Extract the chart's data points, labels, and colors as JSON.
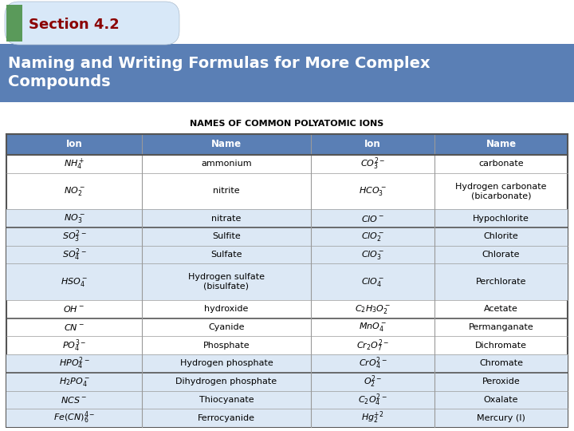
{
  "title": "Section 4.2",
  "subtitle": "Naming and Writing Formulas for More Complex\nCompounds",
  "table_title": "NAMES OF COMMON POLYATOMIC IONS",
  "header_bg": "#5a7fb5",
  "header_text_color": "#ffffff",
  "green_box_color": "#5a9a5a",
  "red_text_color": "#8B0000",
  "tab_bg": "#dce8f5",
  "table_header_bg": "#5a7fb5",
  "table_header_text": "#ffffff",
  "alt_row_bg": "#dce8f5",
  "white_row_bg": "#ffffff",
  "thick_border_rows": [
    2,
    6,
    9
  ],
  "columns": [
    "Ion",
    "Name",
    "Ion",
    "Name"
  ],
  "rows": [
    [
      "$NH_4^+$",
      "ammonium",
      "$CO_3^{2-}$",
      "carbonate"
    ],
    [
      "$NO_2^-$",
      "nitrite",
      "$HCO_3^-$",
      "Hydrogen carbonate\n(bicarbonate)"
    ],
    [
      "$NO_3^-$",
      "nitrate",
      "$ClO^-$",
      "Hypochlorite"
    ],
    [
      "$SO_3^{2-}$",
      "Sulfite",
      "$ClO_2^-$",
      "Chlorite"
    ],
    [
      "$SO_4^{2-}$",
      "Sulfate",
      "$ClO_3^-$",
      "Chlorate"
    ],
    [
      "$HSO_4^-$",
      "Hydrogen sulfate\n(bisulfate)",
      "$ClO_4^-$",
      "Perchlorate"
    ],
    [
      "$OH^-$",
      "hydroxide",
      "$C_2H_3O_2^-$",
      "Acetate"
    ],
    [
      "$CN^-$",
      "Cyanide",
      "$MnO_4^-$",
      "Permanganate"
    ],
    [
      "$PO_4^{3-}$",
      "Phosphate",
      "$Cr_2O_7^{2-}$",
      "Dichromate"
    ],
    [
      "$HPO_4^{2-}$",
      "Hydrogen phosphate",
      "$CrO_4^{2-}$",
      "Chromate"
    ],
    [
      "$H_2PO_4^-$",
      "Dihydrogen phosphate",
      "$O_2^{2-}$",
      "Peroxide"
    ],
    [
      "$NCS^-$",
      "Thiocyanate",
      "$C_2O_4^{2-}$",
      "Oxalate"
    ],
    [
      "$Fe(CN)_6^{4-}$",
      "Ferrocyanide",
      "$Hg_2^{+2}$",
      "Mercury (I)"
    ]
  ],
  "figure_bg": "#ffffff",
  "border_color": "#999999",
  "thick_border_color": "#555555"
}
